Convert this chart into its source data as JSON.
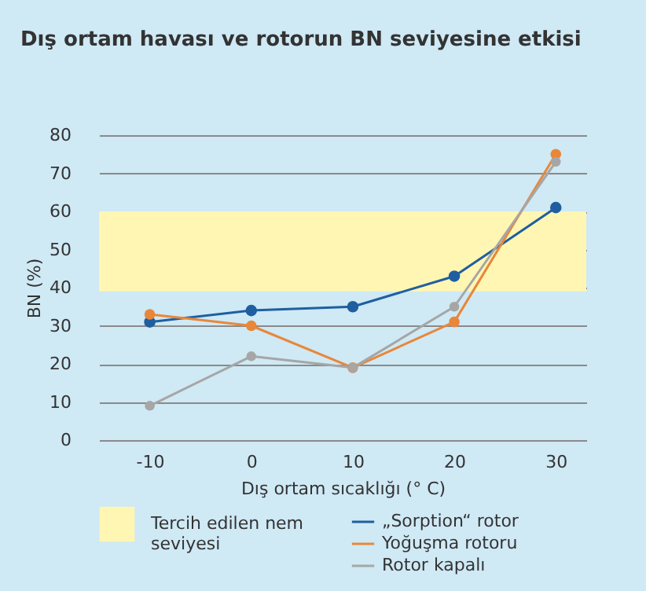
{
  "chart_data": {
    "type": "line",
    "title": "Dış ortam havası ve rotorun BN seviyesine etkisi",
    "xlabel": "Dış ortam sıcaklığı (° C)",
    "ylabel": "BN (%)",
    "x": [
      -10,
      0,
      10,
      20,
      30
    ],
    "series": [
      {
        "name": "„Sorption“ rotor",
        "color": "#1f5fa0",
        "values": [
          31,
          34,
          35,
          43,
          61
        ]
      },
      {
        "name": "Yoğuşma rotoru",
        "color": "#e8873a",
        "values": [
          33,
          30,
          19,
          31,
          75
        ]
      },
      {
        "name": "Rotor kapalı",
        "color": "#a6a6a6",
        "values": [
          9,
          22,
          19,
          35,
          73
        ]
      }
    ],
    "bands": [
      {
        "axis": "y",
        "from": 39,
        "to": 60,
        "label": "Tercih edilen nem seviyesi",
        "color": "#fff6b3"
      }
    ],
    "xlim": [
      -15,
      33
    ],
    "xticks": [
      -10,
      0,
      10,
      20,
      30
    ],
    "ylim": [
      0,
      80
    ],
    "yticks": [
      0,
      10,
      20,
      30,
      40,
      50,
      60,
      70,
      80
    ],
    "grid": "y",
    "legend": "bottom",
    "marker": "circle",
    "line_style": "solid"
  }
}
